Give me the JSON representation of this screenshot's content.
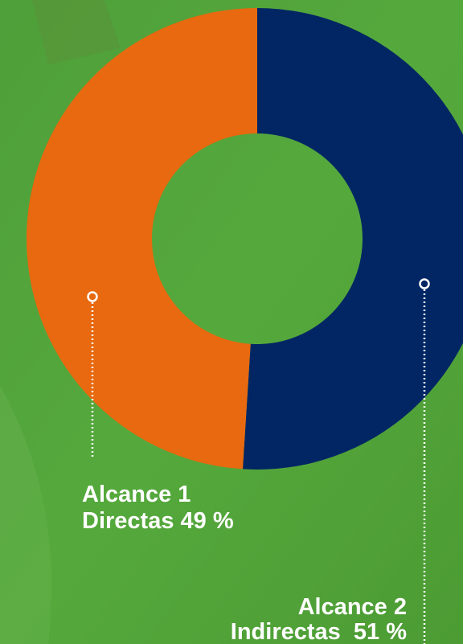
{
  "chart_data": {
    "type": "pie",
    "categories": [
      "Alcance 1",
      "Alcance 2"
    ],
    "values": [
      49,
      51
    ],
    "value_labels": [
      "Directas 49 %",
      "Indirectas  51 %"
    ],
    "colors": [
      "#e8690f",
      "#022664"
    ]
  }
}
